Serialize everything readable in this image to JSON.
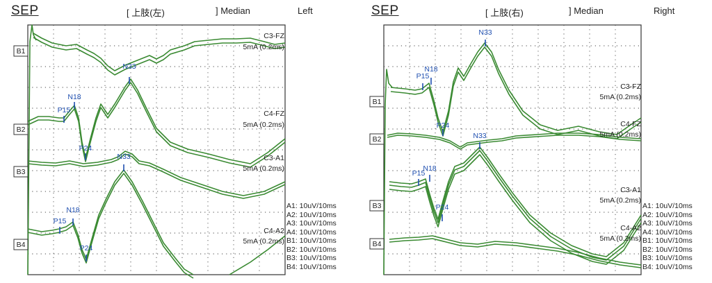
{
  "colors": {
    "trace": "#3a8a32",
    "peak": "#1f4fb0",
    "grid": "#444444"
  },
  "chart_data": [
    {
      "type": "line",
      "panel": "left",
      "title": "SEP",
      "header": {
        "bracket_open": "[ 上肢(左)",
        "bracket_close": "] Median",
        "side": "Left"
      },
      "grid": true,
      "channels": [
        {
          "box": "B1",
          "derivation": "C3-FZ",
          "stimulus": "5mA (0.2ms)"
        },
        {
          "box": "B2",
          "derivation": "C4-FZ",
          "stimulus": "5mA (0.2ms)"
        },
        {
          "box": "B3",
          "derivation": "C3-A1",
          "stimulus": "5mA (0.2ms)"
        },
        {
          "box": "B4",
          "derivation": "C4-A2",
          "stimulus": "5mA (0.2ms)"
        }
      ],
      "peaks": [
        "N33",
        "P15",
        "N18",
        "P24",
        "N33",
        "P15",
        "N18",
        "P24"
      ],
      "scale_labels": [
        "A1: 10uV/10ms",
        "A2: 10uV/10ms",
        "A3: 10uV/10ms",
        "A4: 10uV/10ms",
        "B1: 10uV/10ms",
        "B2: 10uV/10ms",
        "B3: 10uV/10ms",
        "B4: 10uV/10ms"
      ]
    },
    {
      "type": "line",
      "panel": "right",
      "title": "SEP",
      "header": {
        "bracket_open": "[ 上肢(右)",
        "bracket_close": "] Median",
        "side": "Right"
      },
      "grid": true,
      "channels": [
        {
          "box": "B1",
          "derivation": "C3-FZ",
          "stimulus": "5mA (0.2ms)"
        },
        {
          "box": "B2",
          "derivation": "C4-FZ",
          "stimulus": "5mA (0.2ms)"
        },
        {
          "box": "B3",
          "derivation": "C3-A1",
          "stimulus": "5mA (0.2ms)"
        },
        {
          "box": "B4",
          "derivation": "C4-A2",
          "stimulus": "5mA (0.2ms)"
        }
      ],
      "peaks": [
        "P15",
        "N18",
        "N33",
        "P24",
        "N33",
        "P15",
        "N18",
        "P24"
      ],
      "scale_labels": [
        "A1: 10uV/10ms",
        "A2: 10uV/10ms",
        "A3: 10uV/10ms",
        "A4: 10uV/10ms",
        "B1: 10uV/10ms",
        "B2: 10uV/10ms",
        "B3: 10uV/10ms",
        "B4: 10uV/10ms"
      ]
    }
  ]
}
